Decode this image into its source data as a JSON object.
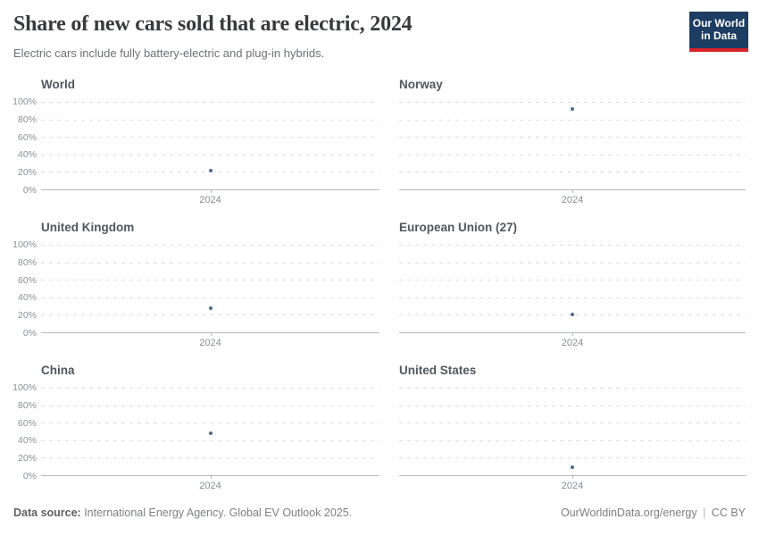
{
  "header": {
    "title": "Share of new cars sold that are electric, 2024",
    "subtitle": "Electric cars include fully battery-electric and plug-in hybrids.",
    "logo_line1": "Our World",
    "logo_line2": "in Data",
    "logo_bg_color": "#1d3d63",
    "logo_stripe_color": "#d8232a"
  },
  "chart_data": {
    "type": "scatter",
    "title": "Share of new cars sold that are electric, 2024",
    "layout": "facets-2col-3row",
    "x": [
      2024
    ],
    "xtick_label": "2024",
    "ylim": [
      0,
      100
    ],
    "ytick_labels_top_to_bottom": [
      "100%",
      "80%",
      "60%",
      "40%",
      "20%",
      "0%"
    ],
    "grid": "dashed-horizontal",
    "dot_color": "#4c6a9c",
    "unit": "%",
    "panels": [
      {
        "title": "World",
        "year": 2024,
        "value": 22
      },
      {
        "title": "Norway",
        "year": 2024,
        "value": 92
      },
      {
        "title": "United Kingdom",
        "year": 2024,
        "value": 28
      },
      {
        "title": "European Union (27)",
        "year": 2024,
        "value": 21
      },
      {
        "title": "China",
        "year": 2024,
        "value": 48
      },
      {
        "title": "United States",
        "year": 2024,
        "value": 10
      }
    ]
  },
  "footer": {
    "source_label": "Data source:",
    "source_value": " International Energy Agency. Global EV Outlook 2025.",
    "link": "OurWorldinData.org/energy",
    "separator": "|",
    "license": "CC BY"
  }
}
